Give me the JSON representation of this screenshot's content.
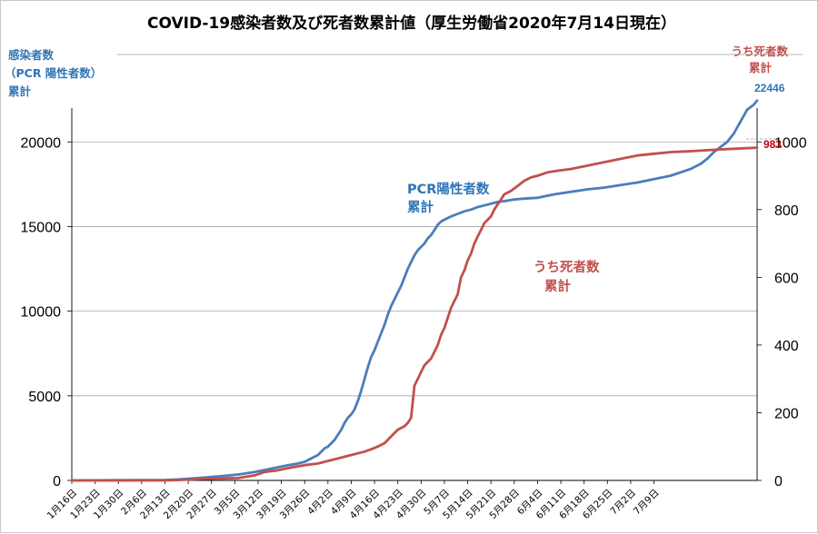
{
  "chart_data": {
    "type": "line",
    "title": "COVID-19感染者数及び死者数累計値（厚生労働省2020年7月14日現在）",
    "y_left_label": [
      "感染者数",
      "（PCR 陽性者数）",
      "累計"
    ],
    "y_right_label": [
      "うち死者数",
      "累計"
    ],
    "y_left_ticks": [
      "0",
      "5000",
      "10000",
      "15000",
      "20000"
    ],
    "y_right_ticks": [
      "0",
      "200",
      "400",
      "600",
      "800",
      "1000"
    ],
    "ylim_left": [
      0,
      22000
    ],
    "ylim_right": [
      0,
      1100
    ],
    "x_tick_labels": [
      "1月16日",
      "1月23日",
      "1月30日",
      "2月6日",
      "2月13日",
      "2月20日",
      "2月27日",
      "3月5日",
      "3月12日",
      "3月19日",
      "3月26日",
      "4月2日",
      "4月9日",
      "4月16日",
      "4月23日",
      "4月30日",
      "5月7日",
      "5月14日",
      "5月21日",
      "5月28日",
      "6月4日",
      "6月11日",
      "6月18日",
      "6月25日",
      "7月2日",
      "7月9日"
    ],
    "grid": true,
    "series": [
      {
        "name": "PCR陽性者数累計",
        "axis": "left",
        "color": "#4a7ebb",
        "annotation": [
          "PCR陽性者数",
          "累計"
        ],
        "end_label": "22446",
        "points": [
          [
            0,
            0
          ],
          [
            7,
            5
          ],
          [
            14,
            10
          ],
          [
            21,
            15
          ],
          [
            28,
            25
          ],
          [
            32,
            60
          ],
          [
            35,
            100
          ],
          [
            40,
            170
          ],
          [
            45,
            250
          ],
          [
            50,
            350
          ],
          [
            55,
            500
          ],
          [
            60,
            700
          ],
          [
            65,
            900
          ],
          [
            68,
            1000
          ],
          [
            70,
            1100
          ],
          [
            72,
            1300
          ],
          [
            74,
            1500
          ],
          [
            75,
            1700
          ],
          [
            76,
            1900
          ],
          [
            77,
            2000
          ],
          [
            78,
            2200
          ],
          [
            79,
            2400
          ],
          [
            80,
            2700
          ],
          [
            81,
            3000
          ],
          [
            82,
            3400
          ],
          [
            83,
            3700
          ],
          [
            84,
            3900
          ],
          [
            85,
            4200
          ],
          [
            86,
            4700
          ],
          [
            87,
            5300
          ],
          [
            88,
            6000
          ],
          [
            89,
            6700
          ],
          [
            90,
            7300
          ],
          [
            91,
            7700
          ],
          [
            92,
            8200
          ],
          [
            93,
            8700
          ],
          [
            94,
            9200
          ],
          [
            95,
            9800
          ],
          [
            96,
            10300
          ],
          [
            97,
            10700
          ],
          [
            98,
            11100
          ],
          [
            99,
            11500
          ],
          [
            100,
            12000
          ],
          [
            101,
            12500
          ],
          [
            102,
            12900
          ],
          [
            103,
            13300
          ],
          [
            104,
            13600
          ],
          [
            105,
            13800
          ],
          [
            106,
            14000
          ],
          [
            107,
            14300
          ],
          [
            108,
            14500
          ],
          [
            109,
            14800
          ],
          [
            110,
            15100
          ],
          [
            111,
            15300
          ],
          [
            112,
            15400
          ],
          [
            114,
            15600
          ],
          [
            116,
            15750
          ],
          [
            118,
            15900
          ],
          [
            120,
            16000
          ],
          [
            122,
            16150
          ],
          [
            124,
            16250
          ],
          [
            126,
            16350
          ],
          [
            128,
            16450
          ],
          [
            130,
            16500
          ],
          [
            133,
            16600
          ],
          [
            136,
            16650
          ],
          [
            140,
            16700
          ],
          [
            145,
            16900
          ],
          [
            150,
            17050
          ],
          [
            155,
            17200
          ],
          [
            160,
            17300
          ],
          [
            165,
            17450
          ],
          [
            170,
            17600
          ],
          [
            175,
            17800
          ],
          [
            180,
            18000
          ],
          [
            183,
            18200
          ],
          [
            186,
            18400
          ],
          [
            189,
            18700
          ],
          [
            191,
            19000
          ],
          [
            193,
            19400
          ],
          [
            195,
            19700
          ],
          [
            197,
            20000
          ],
          [
            199,
            20500
          ],
          [
            201,
            21200
          ],
          [
            203,
            21900
          ],
          [
            205,
            22200
          ],
          [
            206,
            22446
          ]
        ]
      },
      {
        "name": "うち死者数累計",
        "axis": "right",
        "color": "#c0504d",
        "annotation": [
          "うち死者数",
          "累計"
        ],
        "end_label": "983",
        "points": [
          [
            0,
            0
          ],
          [
            28,
            0
          ],
          [
            32,
            1
          ],
          [
            36,
            3
          ],
          [
            40,
            5
          ],
          [
            45,
            6
          ],
          [
            50,
            7
          ],
          [
            55,
            15
          ],
          [
            58,
            25
          ],
          [
            62,
            30
          ],
          [
            66,
            38
          ],
          [
            70,
            45
          ],
          [
            74,
            50
          ],
          [
            78,
            60
          ],
          [
            80,
            65
          ],
          [
            82,
            70
          ],
          [
            84,
            75
          ],
          [
            86,
            80
          ],
          [
            88,
            85
          ],
          [
            90,
            92
          ],
          [
            92,
            100
          ],
          [
            94,
            110
          ],
          [
            96,
            130
          ],
          [
            98,
            150
          ],
          [
            100,
            160
          ],
          [
            101,
            170
          ],
          [
            102,
            185
          ],
          [
            103,
            280
          ],
          [
            104,
            300
          ],
          [
            105,
            320
          ],
          [
            106,
            340
          ],
          [
            107,
            350
          ],
          [
            108,
            360
          ],
          [
            109,
            380
          ],
          [
            110,
            400
          ],
          [
            111,
            430
          ],
          [
            112,
            450
          ],
          [
            113,
            480
          ],
          [
            114,
            510
          ],
          [
            115,
            530
          ],
          [
            116,
            550
          ],
          [
            117,
            600
          ],
          [
            118,
            620
          ],
          [
            119,
            650
          ],
          [
            120,
            670
          ],
          [
            121,
            700
          ],
          [
            122,
            720
          ],
          [
            123,
            740
          ],
          [
            124,
            760
          ],
          [
            125,
            770
          ],
          [
            126,
            780
          ],
          [
            127,
            800
          ],
          [
            128,
            815
          ],
          [
            129,
            830
          ],
          [
            130,
            845
          ],
          [
            132,
            855
          ],
          [
            134,
            870
          ],
          [
            136,
            885
          ],
          [
            138,
            895
          ],
          [
            140,
            900
          ],
          [
            143,
            910
          ],
          [
            146,
            915
          ],
          [
            150,
            920
          ],
          [
            155,
            930
          ],
          [
            160,
            940
          ],
          [
            165,
            950
          ],
          [
            170,
            960
          ],
          [
            175,
            965
          ],
          [
            180,
            970
          ],
          [
            185,
            972
          ],
          [
            190,
            975
          ],
          [
            195,
            978
          ],
          [
            200,
            980
          ],
          [
            206,
            983
          ]
        ]
      }
    ]
  }
}
